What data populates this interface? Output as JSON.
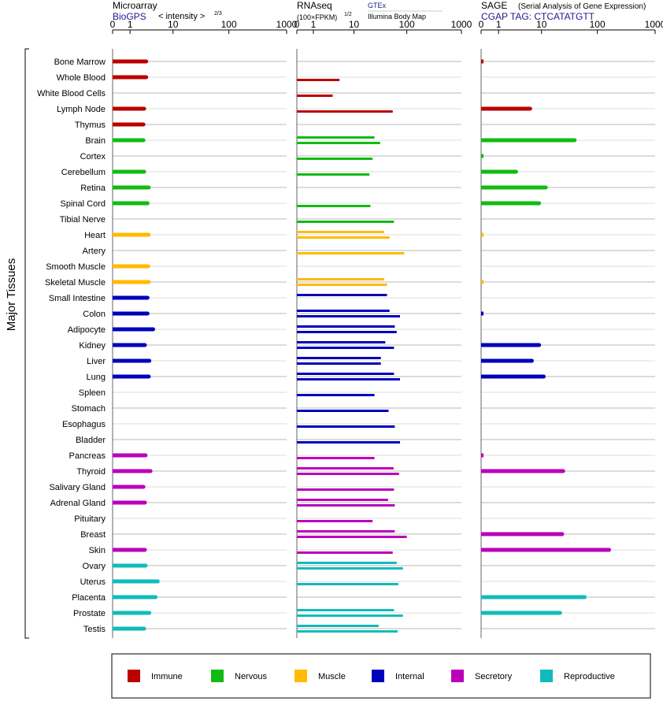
{
  "side_label": "Major Tissues",
  "panels": {
    "microarray": {
      "title": "Microarray",
      "subtitle": "BioGPS",
      "scale_note": "< intensity >",
      "scale_exp": "2/3"
    },
    "rnaseq": {
      "title": "RNAseq",
      "scale_note": "(100×FPKM)",
      "scale_exp": "1/2",
      "source1": "GTEx",
      "source2": "Illumina Body Map"
    },
    "sage": {
      "title": "SAGE",
      "title_note": "(Serial Analysis of Gene Expression)",
      "tag_line": "CGAP TAG: CTCATATGTT"
    }
  },
  "colors": {
    "Immune": "#bb0000",
    "Nervous": "#11bb11",
    "Muscle": "#ffbb00",
    "Internal": "#0000bb",
    "Secretory": "#bb00bb",
    "Reproductive": "#11bbbb"
  },
  "legend": [
    "Immune",
    "Nervous",
    "Muscle",
    "Internal",
    "Secretory",
    "Reproductive"
  ],
  "chart_data": {
    "type": "bar",
    "axis_ticks": [
      "0",
      "1",
      "10",
      "100",
      "1000"
    ],
    "tissues": [
      {
        "name": "Bone Marrow",
        "group": "Immune",
        "micro": 2.8,
        "gtex": null,
        "ibm": null,
        "sage": 0.1
      },
      {
        "name": "Whole Blood",
        "group": "Immune",
        "micro": 2.8,
        "gtex": null,
        "ibm": 5,
        "sage": null
      },
      {
        "name": "White Blood Cells",
        "group": "Immune",
        "micro": null,
        "gtex": null,
        "ibm": 3.5,
        "sage": null
      },
      {
        "name": "Lymph Node",
        "group": "Immune",
        "micro": 2.5,
        "gtex": null,
        "ibm": 55,
        "sage": 6
      },
      {
        "name": "Thymus",
        "group": "Immune",
        "micro": 2.4,
        "gtex": null,
        "ibm": null,
        "sage": null
      },
      {
        "name": "Brain",
        "group": "Nervous",
        "micro": 2.4,
        "gtex": 25,
        "ibm": 32,
        "sage": 40
      },
      {
        "name": "Cortex",
        "group": "Nervous",
        "micro": null,
        "gtex": null,
        "ibm": 23,
        "sage": 0.1
      },
      {
        "name": "Cerebellum",
        "group": "Nervous",
        "micro": 2.5,
        "gtex": null,
        "ibm": 20,
        "sage": 3
      },
      {
        "name": "Retina",
        "group": "Nervous",
        "micro": 3.2,
        "gtex": null,
        "ibm": null,
        "sage": 12
      },
      {
        "name": "Spinal Cord",
        "group": "Nervous",
        "micro": 3.0,
        "gtex": null,
        "ibm": 21,
        "sage": 9
      },
      {
        "name": "Tibial Nerve",
        "group": "Nervous",
        "micro": null,
        "gtex": null,
        "ibm": 58,
        "sage": null
      },
      {
        "name": "Heart",
        "group": "Muscle",
        "micro": 3.2,
        "gtex": 38,
        "ibm": 48,
        "sage": 0.1
      },
      {
        "name": "Artery",
        "group": "Muscle",
        "micro": null,
        "gtex": null,
        "ibm": 90,
        "sage": null
      },
      {
        "name": "Smooth Muscle",
        "group": "Muscle",
        "micro": 3.1,
        "gtex": null,
        "ibm": null,
        "sage": null
      },
      {
        "name": "Skeletal Muscle",
        "group": "Muscle",
        "micro": 3.2,
        "gtex": 38,
        "ibm": 43,
        "sage": 0.1
      },
      {
        "name": "Small Intestine",
        "group": "Internal",
        "micro": 3.0,
        "gtex": 43,
        "ibm": null,
        "sage": null
      },
      {
        "name": "Colon",
        "group": "Internal",
        "micro": 3.0,
        "gtex": 48,
        "ibm": 75,
        "sage": 0.1
      },
      {
        "name": "Adipocyte",
        "group": "Internal",
        "micro": 4.0,
        "gtex": 60,
        "ibm": 65,
        "sage": null
      },
      {
        "name": "Kidney",
        "group": "Internal",
        "micro": 2.6,
        "gtex": 40,
        "ibm": 58,
        "sage": 9
      },
      {
        "name": "Liver",
        "group": "Internal",
        "micro": 3.3,
        "gtex": 33,
        "ibm": 33,
        "sage": 6.5
      },
      {
        "name": "Lung",
        "group": "Internal",
        "micro": 3.2,
        "gtex": 58,
        "ibm": 75,
        "sage": 11
      },
      {
        "name": "Spleen",
        "group": "Internal",
        "micro": null,
        "gtex": null,
        "ibm": 25,
        "sage": null
      },
      {
        "name": "Stomach",
        "group": "Internal",
        "micro": null,
        "gtex": null,
        "ibm": 46,
        "sage": null
      },
      {
        "name": "Esophagus",
        "group": "Internal",
        "micro": null,
        "gtex": null,
        "ibm": 60,
        "sage": null
      },
      {
        "name": "Bladder",
        "group": "Internal",
        "micro": null,
        "gtex": null,
        "ibm": 75,
        "sage": null
      },
      {
        "name": "Pancreas",
        "group": "Secretory",
        "micro": 2.7,
        "gtex": null,
        "ibm": 25,
        "sage": 0.1
      },
      {
        "name": "Thyroid",
        "group": "Secretory",
        "micro": 3.5,
        "gtex": 57,
        "ibm": 72,
        "sage": 25
      },
      {
        "name": "Salivary Gland",
        "group": "Secretory",
        "micro": 2.4,
        "gtex": null,
        "ibm": 58,
        "sage": null
      },
      {
        "name": "Adrenal Gland",
        "group": "Secretory",
        "micro": 2.6,
        "gtex": 45,
        "ibm": 60,
        "sage": null
      },
      {
        "name": "Pituitary",
        "group": "Secretory",
        "micro": null,
        "gtex": null,
        "ibm": 23,
        "sage": null
      },
      {
        "name": "Breast",
        "group": "Secretory",
        "micro": null,
        "gtex": 60,
        "ibm": 100,
        "sage": 24
      },
      {
        "name": "Skin",
        "group": "Secretory",
        "micro": 2.6,
        "gtex": null,
        "ibm": 55,
        "sage": 160
      },
      {
        "name": "Ovary",
        "group": "Reproductive",
        "micro": 2.7,
        "gtex": 65,
        "ibm": 85,
        "sage": null
      },
      {
        "name": "Uterus",
        "group": "Reproductive",
        "micro": 5.0,
        "gtex": null,
        "ibm": 70,
        "sage": null
      },
      {
        "name": "Placenta",
        "group": "Reproductive",
        "micro": 4.5,
        "gtex": null,
        "ibm": null,
        "sage": 60
      },
      {
        "name": "Prostate",
        "group": "Reproductive",
        "micro": 3.3,
        "gtex": 58,
        "ibm": 85,
        "sage": 22
      },
      {
        "name": "Testis",
        "group": "Reproductive",
        "micro": 2.5,
        "gtex": 30,
        "ibm": 68,
        "sage": null
      }
    ]
  }
}
